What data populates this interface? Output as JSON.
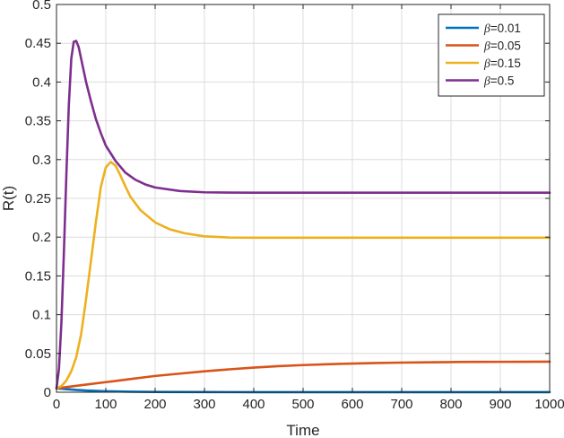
{
  "chart_data": {
    "type": "line",
    "title": "",
    "xlabel": "Time",
    "ylabel": "R(t)",
    "xlim": [
      0,
      1000
    ],
    "ylim": [
      0,
      0.5
    ],
    "xticks": [
      0,
      100,
      200,
      300,
      400,
      500,
      600,
      700,
      800,
      900,
      1000
    ],
    "yticks": [
      0,
      0.05,
      0.1,
      0.15,
      0.2,
      0.25,
      0.3,
      0.35,
      0.4,
      0.45,
      0.5
    ],
    "xtick_labels": [
      "0",
      "100",
      "200",
      "300",
      "400",
      "500",
      "600",
      "700",
      "800",
      "900",
      "1000"
    ],
    "ytick_labels": [
      "0",
      "0.05",
      "0.1",
      "0.15",
      "0.2",
      "0.25",
      "0.3",
      "0.35",
      "0.4",
      "0.45",
      "0.5"
    ],
    "grid": true,
    "legend_position": "top-right",
    "legend_symbol": "β",
    "series": [
      {
        "name": "β=0.01",
        "legend_value": "=0.01",
        "color": "#0072BD",
        "x": [
          0,
          10,
          20,
          40,
          60,
          100,
          150,
          200,
          300,
          400,
          500,
          700,
          1000
        ],
        "y": [
          0.005,
          0.0045,
          0.004,
          0.003,
          0.0022,
          0.0013,
          0.0007,
          0.0004,
          0.0002,
          0.0001,
          0.0001,
          0.0001,
          0.0001
        ]
      },
      {
        "name": "β=0.05",
        "legend_value": "=0.05",
        "color": "#D95319",
        "x": [
          0,
          50,
          100,
          150,
          200,
          250,
          300,
          350,
          400,
          450,
          500,
          550,
          600,
          650,
          700,
          750,
          800,
          850,
          900,
          950,
          1000
        ],
        "y": [
          0.005,
          0.009,
          0.013,
          0.017,
          0.021,
          0.024,
          0.027,
          0.0295,
          0.0318,
          0.0336,
          0.035,
          0.0361,
          0.037,
          0.0377,
          0.0382,
          0.0386,
          0.0389,
          0.0391,
          0.0392,
          0.0393,
          0.0394
        ]
      },
      {
        "name": "β=0.15",
        "legend_value": "=0.15",
        "color": "#EDB120",
        "x": [
          0,
          10,
          20,
          30,
          40,
          50,
          60,
          70,
          80,
          90,
          100,
          110,
          120,
          130,
          140,
          150,
          170,
          200,
          230,
          260,
          300,
          350,
          400,
          500,
          600,
          700,
          800,
          900,
          1000
        ],
        "y": [
          0.005,
          0.008,
          0.015,
          0.027,
          0.045,
          0.075,
          0.12,
          0.17,
          0.22,
          0.265,
          0.29,
          0.297,
          0.292,
          0.279,
          0.265,
          0.252,
          0.235,
          0.219,
          0.21,
          0.205,
          0.201,
          0.1995,
          0.1993,
          0.1993,
          0.1993,
          0.1993,
          0.1993,
          0.1993,
          0.1993
        ]
      },
      {
        "name": "β=0.5",
        "legend_value": "=0.5",
        "color": "#7E2F8E",
        "x": [
          0,
          5,
          10,
          15,
          20,
          25,
          30,
          35,
          40,
          45,
          50,
          60,
          70,
          80,
          90,
          100,
          120,
          140,
          160,
          180,
          200,
          250,
          300,
          350,
          400,
          500,
          600,
          700,
          800,
          900,
          1000
        ],
        "y": [
          0.005,
          0.03,
          0.09,
          0.18,
          0.28,
          0.37,
          0.43,
          0.452,
          0.453,
          0.445,
          0.43,
          0.4,
          0.375,
          0.352,
          0.334,
          0.318,
          0.298,
          0.283,
          0.274,
          0.268,
          0.264,
          0.2595,
          0.2578,
          0.2575,
          0.2573,
          0.2573,
          0.2573,
          0.2573,
          0.2573,
          0.2573,
          0.2573
        ]
      }
    ]
  }
}
